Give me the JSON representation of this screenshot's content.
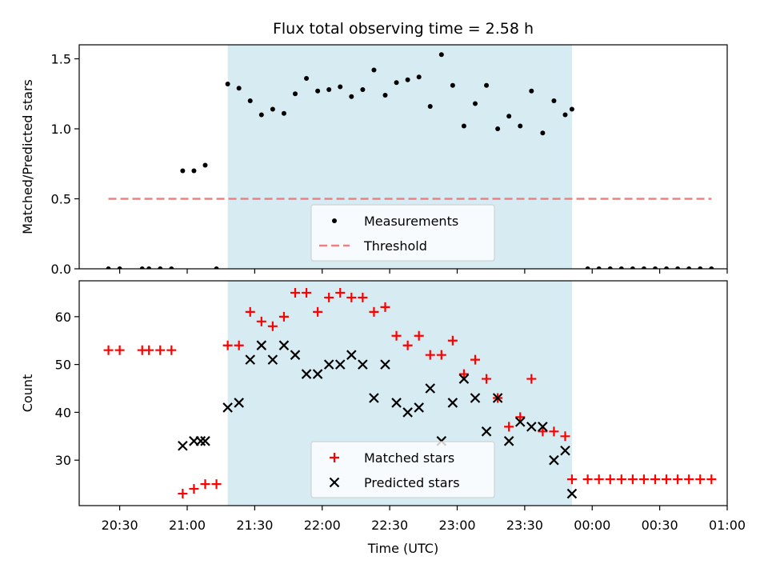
{
  "title": "Flux total observing time = 2.58 h",
  "colors": {
    "shade": "#add8e6",
    "threshold": "#f08080",
    "matched": "#ff0000",
    "predicted": "#000000",
    "measurement": "#000000"
  },
  "chart_data": [
    {
      "type": "scatter",
      "ylabel": "Matched/Predicted stars",
      "ylim": [
        0,
        1.6
      ],
      "yticks": [
        "0.0",
        "0.5",
        "1.0",
        "1.5"
      ],
      "ytick_values": [
        0,
        0.5,
        1.0,
        1.5
      ],
      "xlim": [
        "20:12",
        "01:00"
      ],
      "xticks": [],
      "shaded_region": [
        "21:18",
        "23:51"
      ],
      "legend": {
        "position": "lower center",
        "entries": [
          "Measurements",
          "Threshold"
        ]
      },
      "threshold": {
        "name": "Threshold",
        "y": 0.5,
        "x_range": [
          "20:25",
          "00:53"
        ],
        "style": "dashed"
      },
      "series": [
        {
          "name": "Measurements",
          "marker": "dot",
          "points": [
            [
              "20:25",
              0
            ],
            [
              "20:30",
              0
            ],
            [
              "20:40",
              0
            ],
            [
              "20:43",
              0
            ],
            [
              "20:48",
              0
            ],
            [
              "20:53",
              0
            ],
            [
              "20:58",
              0.7
            ],
            [
              "21:03",
              0.7
            ],
            [
              "21:08",
              0.74
            ],
            [
              "21:13",
              0
            ],
            [
              "21:18",
              1.32
            ],
            [
              "21:23",
              1.29
            ],
            [
              "21:28",
              1.2
            ],
            [
              "21:33",
              1.1
            ],
            [
              "21:38",
              1.14
            ],
            [
              "21:43",
              1.11
            ],
            [
              "21:48",
              1.25
            ],
            [
              "21:53",
              1.36
            ],
            [
              "21:58",
              1.27
            ],
            [
              "22:03",
              1.28
            ],
            [
              "22:08",
              1.3
            ],
            [
              "22:13",
              1.23
            ],
            [
              "22:18",
              1.28
            ],
            [
              "22:23",
              1.42
            ],
            [
              "22:28",
              1.24
            ],
            [
              "22:33",
              1.33
            ],
            [
              "22:38",
              1.35
            ],
            [
              "22:43",
              1.37
            ],
            [
              "22:48",
              1.16
            ],
            [
              "22:53",
              1.53
            ],
            [
              "22:58",
              1.31
            ],
            [
              "23:03",
              1.02
            ],
            [
              "23:08",
              1.18
            ],
            [
              "23:13",
              1.31
            ],
            [
              "23:18",
              1.0
            ],
            [
              "23:23",
              1.09
            ],
            [
              "23:28",
              1.02
            ],
            [
              "23:33",
              1.27
            ],
            [
              "23:38",
              0.97
            ],
            [
              "23:43",
              1.2
            ],
            [
              "23:48",
              1.1
            ],
            [
              "23:51",
              1.14
            ],
            [
              "23:58",
              0
            ],
            [
              "00:03",
              0
            ],
            [
              "00:08",
              0
            ],
            [
              "00:13",
              0
            ],
            [
              "00:18",
              0
            ],
            [
              "00:23",
              0
            ],
            [
              "00:28",
              0
            ],
            [
              "00:33",
              0
            ],
            [
              "00:38",
              0
            ],
            [
              "00:43",
              0
            ],
            [
              "00:48",
              0
            ],
            [
              "00:53",
              0
            ]
          ]
        }
      ]
    },
    {
      "type": "scatter",
      "ylabel": "Count",
      "xlabel": "Time (UTC)",
      "ylim": [
        20.5,
        67.5
      ],
      "yticks": [
        "30",
        "40",
        "50",
        "60"
      ],
      "ytick_values": [
        30,
        40,
        50,
        60
      ],
      "xlim": [
        "20:12",
        "01:00"
      ],
      "xticks": [
        "20:30",
        "21:00",
        "21:30",
        "22:00",
        "22:30",
        "23:00",
        "23:30",
        "00:00",
        "00:30",
        "01:00"
      ],
      "shaded_region": [
        "21:18",
        "23:51"
      ],
      "legend": {
        "position": "lower center",
        "entries": [
          "Matched stars",
          "Predicted stars"
        ]
      },
      "series": [
        {
          "name": "Matched stars",
          "marker": "plus",
          "points": [
            [
              "20:25",
              53
            ],
            [
              "20:30",
              53
            ],
            [
              "20:40",
              53
            ],
            [
              "20:43",
              53
            ],
            [
              "20:48",
              53
            ],
            [
              "20:53",
              53
            ],
            [
              "20:58",
              23
            ],
            [
              "21:03",
              24
            ],
            [
              "21:08",
              25
            ],
            [
              "21:13",
              25
            ],
            [
              "21:18",
              54
            ],
            [
              "21:23",
              54
            ],
            [
              "21:28",
              61
            ],
            [
              "21:33",
              59
            ],
            [
              "21:38",
              58
            ],
            [
              "21:43",
              60
            ],
            [
              "21:48",
              65
            ],
            [
              "21:53",
              65
            ],
            [
              "21:58",
              61
            ],
            [
              "22:03",
              64
            ],
            [
              "22:08",
              65
            ],
            [
              "22:13",
              64
            ],
            [
              "22:18",
              64
            ],
            [
              "22:23",
              61
            ],
            [
              "22:28",
              62
            ],
            [
              "22:33",
              56
            ],
            [
              "22:38",
              54
            ],
            [
              "22:43",
              56
            ],
            [
              "22:48",
              52
            ],
            [
              "22:53",
              52
            ],
            [
              "22:58",
              55
            ],
            [
              "23:03",
              48
            ],
            [
              "23:08",
              51
            ],
            [
              "23:13",
              47
            ],
            [
              "23:18",
              43
            ],
            [
              "23:23",
              37
            ],
            [
              "23:28",
              39
            ],
            [
              "23:33",
              47
            ],
            [
              "23:38",
              36
            ],
            [
              "23:43",
              36
            ],
            [
              "23:48",
              35
            ],
            [
              "23:51",
              26
            ],
            [
              "23:58",
              26
            ],
            [
              "00:03",
              26
            ],
            [
              "00:08",
              26
            ],
            [
              "00:13",
              26
            ],
            [
              "00:18",
              26
            ],
            [
              "00:23",
              26
            ],
            [
              "00:28",
              26
            ],
            [
              "00:33",
              26
            ],
            [
              "00:38",
              26
            ],
            [
              "00:43",
              26
            ],
            [
              "00:48",
              26
            ],
            [
              "00:53",
              26
            ]
          ]
        },
        {
          "name": "Predicted stars",
          "marker": "x",
          "points": [
            [
              "20:58",
              33
            ],
            [
              "21:03",
              34
            ],
            [
              "21:06",
              34
            ],
            [
              "21:08",
              34
            ],
            [
              "21:18",
              41
            ],
            [
              "21:23",
              42
            ],
            [
              "21:28",
              51
            ],
            [
              "21:33",
              54
            ],
            [
              "21:38",
              51
            ],
            [
              "21:43",
              54
            ],
            [
              "21:48",
              52
            ],
            [
              "21:53",
              48
            ],
            [
              "21:58",
              48
            ],
            [
              "22:03",
              50
            ],
            [
              "22:08",
              50
            ],
            [
              "22:13",
              52
            ],
            [
              "22:18",
              50
            ],
            [
              "22:23",
              43
            ],
            [
              "22:28",
              50
            ],
            [
              "22:33",
              42
            ],
            [
              "22:38",
              40
            ],
            [
              "22:43",
              41
            ],
            [
              "22:48",
              45
            ],
            [
              "22:53",
              34
            ],
            [
              "22:58",
              42
            ],
            [
              "23:03",
              47
            ],
            [
              "23:08",
              43
            ],
            [
              "23:13",
              36
            ],
            [
              "23:18",
              43
            ],
            [
              "23:23",
              34
            ],
            [
              "23:28",
              38
            ],
            [
              "23:33",
              37
            ],
            [
              "23:38",
              37
            ],
            [
              "23:43",
              30
            ],
            [
              "23:48",
              32
            ],
            [
              "23:51",
              23
            ]
          ]
        }
      ]
    }
  ]
}
